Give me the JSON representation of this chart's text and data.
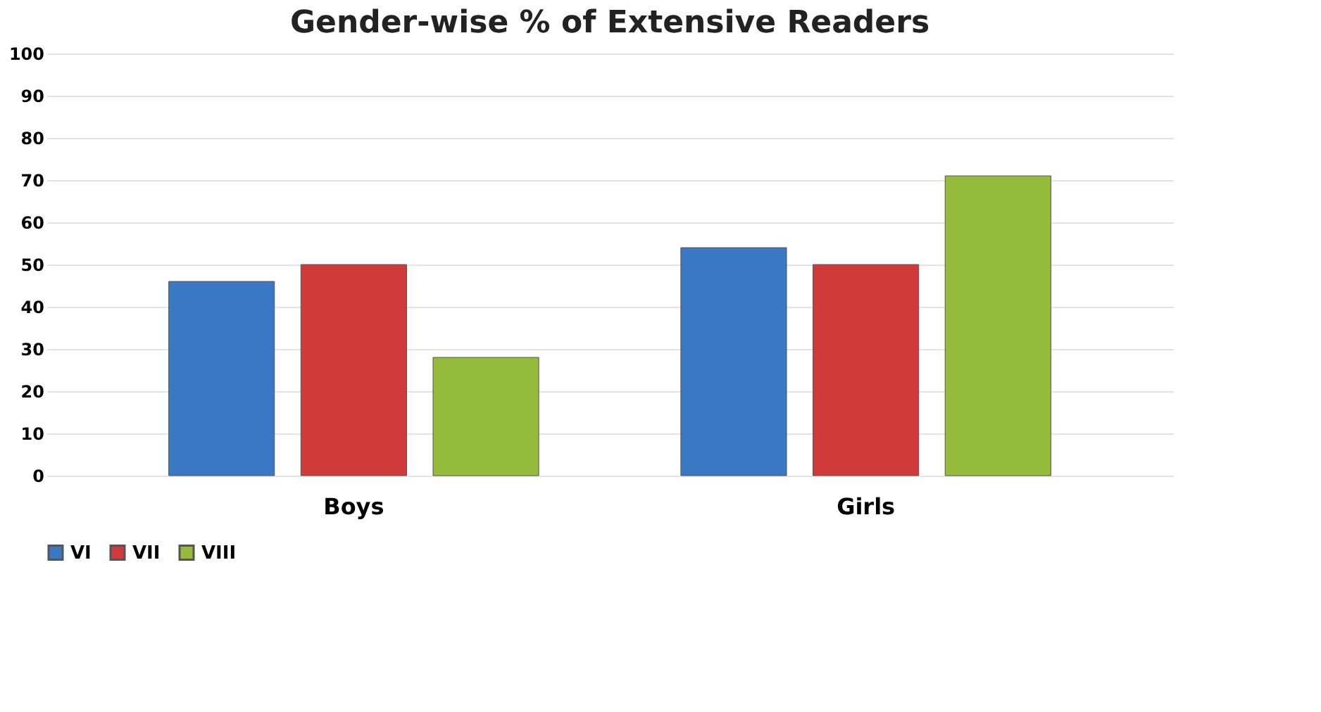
{
  "chart_data": {
    "type": "bar",
    "title": "Gender-wise % of Extensive Readers",
    "categories": [
      "Boys",
      "Girls"
    ],
    "series": [
      {
        "name": "VI",
        "color": "#3a78c3",
        "values": [
          46,
          54
        ]
      },
      {
        "name": "VII",
        "color": "#d03a38",
        "values": [
          50,
          50
        ]
      },
      {
        "name": "VIII",
        "color": "#95bb3c",
        "values": [
          28,
          71
        ]
      }
    ],
    "ylim": [
      0,
      100
    ],
    "yticks": [
      0,
      10,
      20,
      30,
      40,
      50,
      60,
      70,
      80,
      90,
      100
    ],
    "grid": "y",
    "legend": "bottom"
  }
}
